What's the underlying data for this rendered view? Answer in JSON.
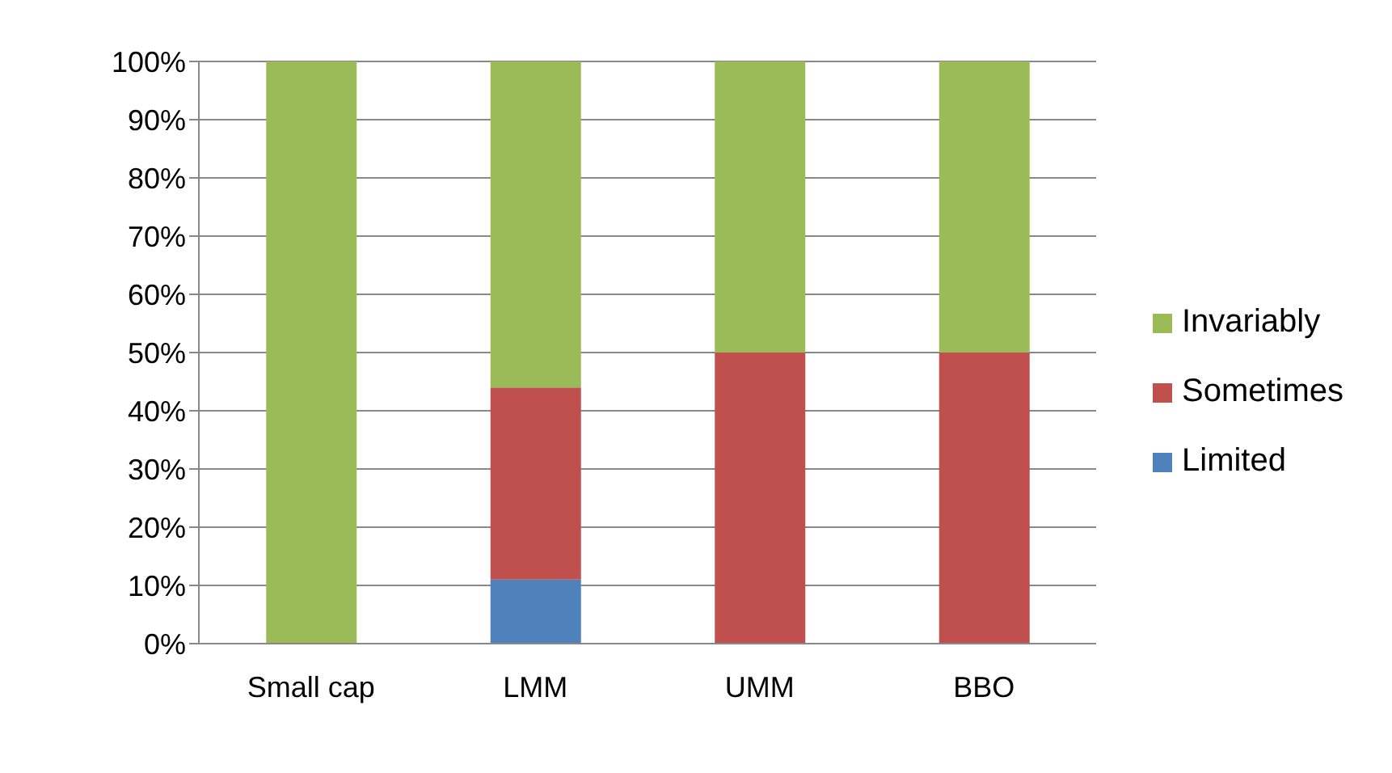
{
  "chart_data": {
    "type": "bar",
    "stacked": true,
    "categories": [
      "Small cap",
      "LMM",
      "UMM",
      "BBO"
    ],
    "series": [
      {
        "name": "Limited",
        "color": "#4f81bd",
        "values": [
          0,
          11,
          0,
          0
        ]
      },
      {
        "name": "Sometimes",
        "color": "#c0504d",
        "values": [
          0,
          33,
          50,
          50
        ]
      },
      {
        "name": "Invariably",
        "color": "#9bbb59",
        "values": [
          100,
          56,
          50,
          50
        ]
      }
    ],
    "ylim": [
      0,
      100
    ],
    "yticks": [
      {
        "value": 0,
        "label": "0%"
      },
      {
        "value": 10,
        "label": "10%"
      },
      {
        "value": 20,
        "label": "20%"
      },
      {
        "value": 30,
        "label": "30%"
      },
      {
        "value": 40,
        "label": "40%"
      },
      {
        "value": 50,
        "label": "50%"
      },
      {
        "value": 60,
        "label": "60%"
      },
      {
        "value": 70,
        "label": "70%"
      },
      {
        "value": 80,
        "label": "80%"
      },
      {
        "value": 90,
        "label": "90%"
      },
      {
        "value": 100,
        "label": "100%"
      }
    ],
    "grid": "y",
    "legend": "right"
  }
}
